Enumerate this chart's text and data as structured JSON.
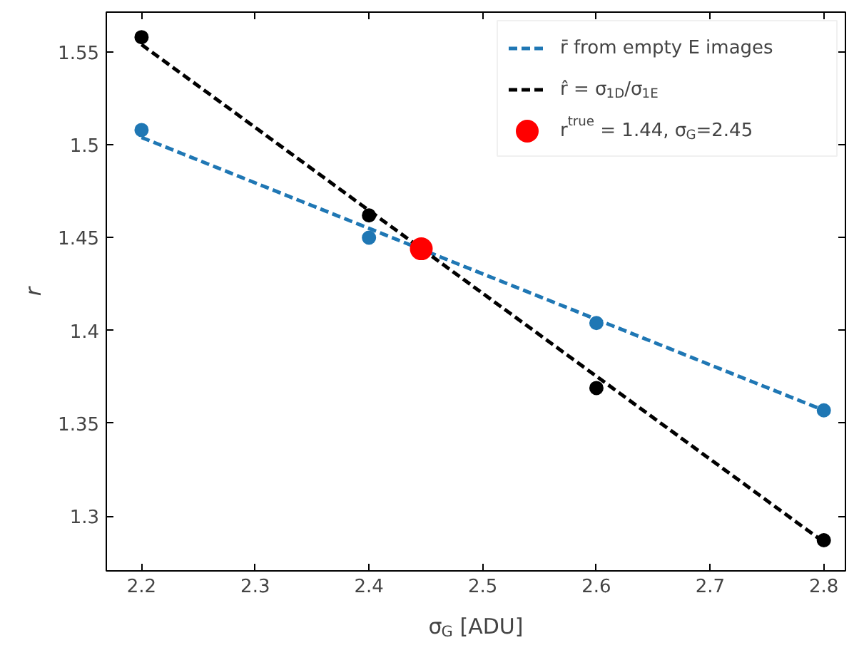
{
  "chart_data": {
    "type": "scatter",
    "xlabel": "σ$_{G}$ [ADU]",
    "ylabel": "r",
    "xlim": [
      2.169,
      2.819
    ],
    "ylim": [
      1.2705,
      1.5715
    ],
    "xticks": [
      2.2,
      2.3,
      2.4,
      2.5,
      2.6,
      2.7,
      2.8
    ],
    "yticks": [
      1.3,
      1.35,
      1.4,
      1.45,
      1.5,
      1.55
    ],
    "grid": false,
    "legend": "top right",
    "series": [
      {
        "type": "line",
        "name": "r̄ from empty E images",
        "color": "#1f77b4",
        "x": [
          2.2,
          2.8
        ],
        "values": [
          1.504,
          1.357
        ],
        "line_style": "dashed"
      },
      {
        "type": "line",
        "name": "r̂ = σ$_{1D}$/σ$_{1E}$",
        "color": "#000000",
        "x": [
          2.2,
          2.8
        ],
        "values": [
          1.554,
          1.286
        ],
        "line_style": "dashed"
      },
      {
        "color": "#1f77b4",
        "x": [
          2.2,
          2.4,
          2.6,
          2.8
        ],
        "values": [
          1.508,
          1.45,
          1.404,
          1.357
        ],
        "marker": "circle"
      },
      {
        "color": "#000000",
        "x": [
          2.2,
          2.4,
          2.6,
          2.8
        ],
        "values": [
          1.558,
          1.462,
          1.369,
          1.287
        ],
        "marker": "circle"
      },
      {
        "name": "r$^{true}$ = 1.44, σ$_{G}$=2.45",
        "color": "#ff0000",
        "x": [
          2.446
        ],
        "values": [
          1.444
        ],
        "marker": "circle"
      }
    ]
  }
}
